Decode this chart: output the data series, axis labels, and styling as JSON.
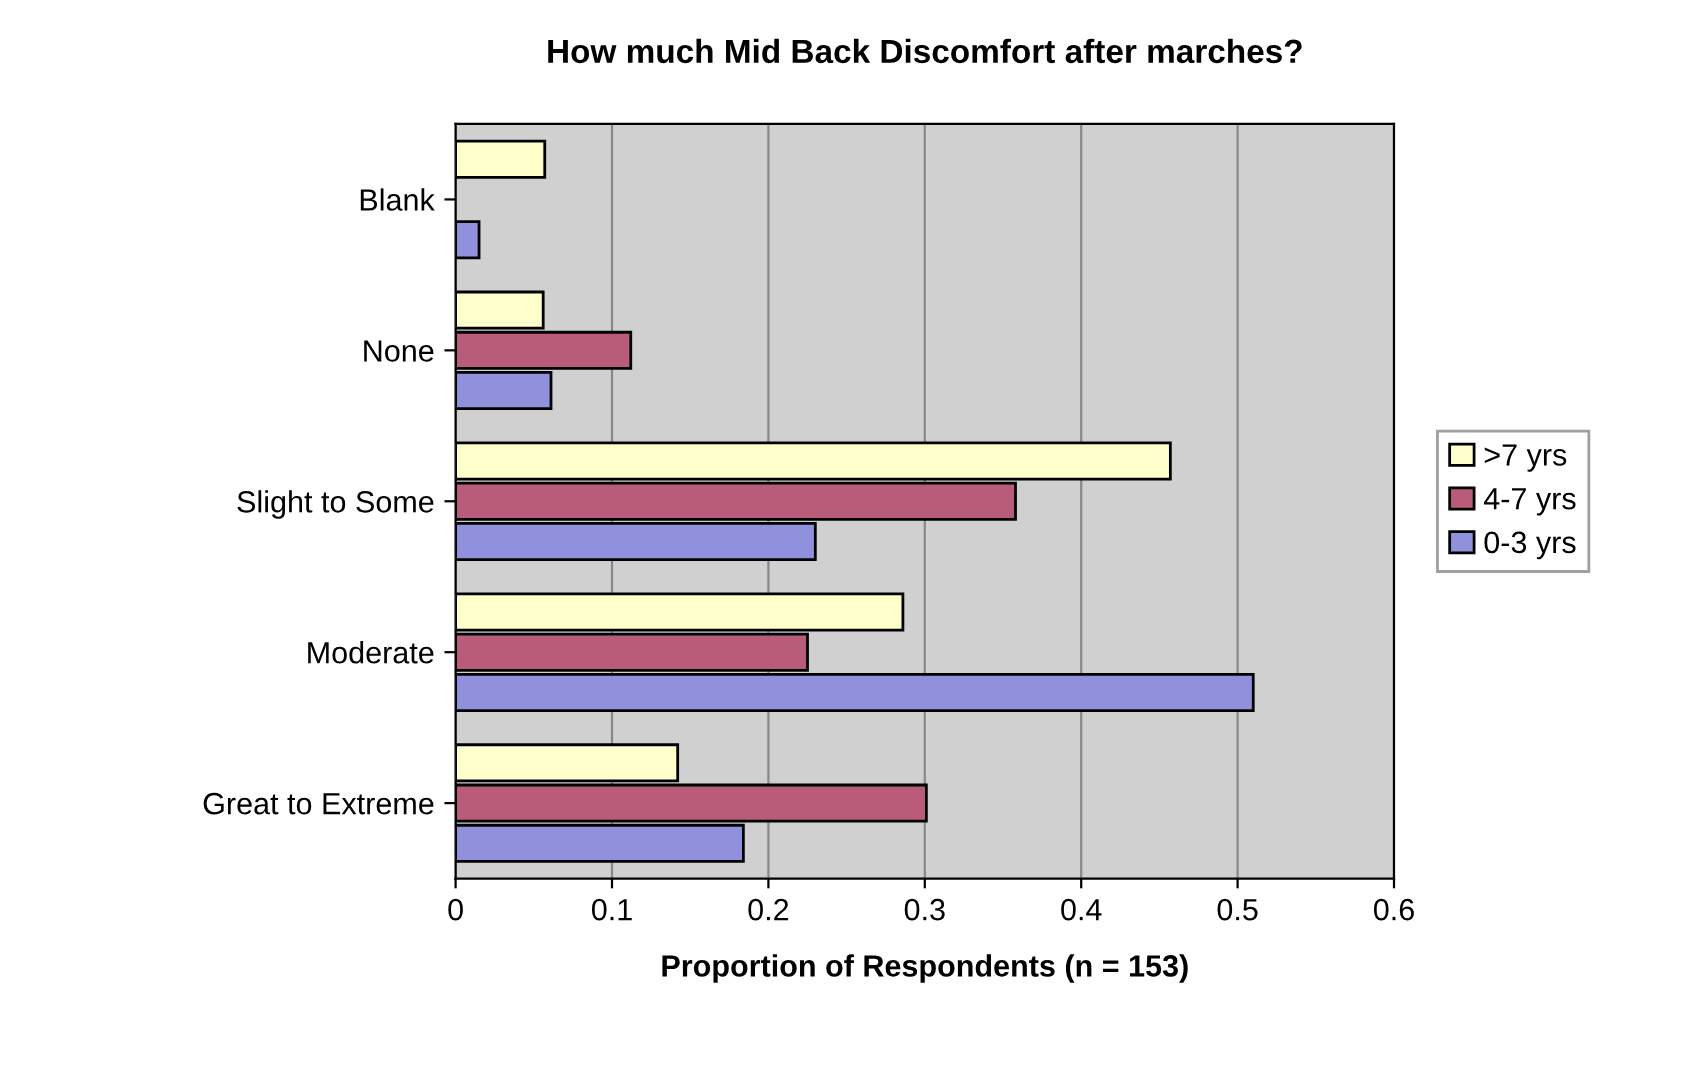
{
  "chart_data": {
    "type": "bar",
    "orientation": "horizontal",
    "title": "How much Mid Back Discomfort after marches?",
    "xlabel": "Proportion of Respondents (n = 153)",
    "categories": [
      "Blank",
      "None",
      "Slight to Some",
      "Moderate",
      "Great to Extreme"
    ],
    "series": [
      {
        "name": ">7 yrs",
        "color": "#ffffcc",
        "values": [
          0.057,
          0.056,
          0.457,
          0.286,
          0.142
        ]
      },
      {
        "name": "4-7 yrs",
        "color": "#b85c7a",
        "values": [
          null,
          0.112,
          0.358,
          0.225,
          0.301
        ]
      },
      {
        "name": "0-3 yrs",
        "color": "#9090dc",
        "values": [
          0.015,
          0.061,
          0.23,
          0.51,
          0.184
        ]
      }
    ],
    "xlim": [
      0,
      0.6
    ],
    "xticks": [
      0,
      0.1,
      0.2,
      0.3,
      0.4,
      0.5,
      0.6
    ],
    "grid": "x",
    "legend": "right"
  }
}
